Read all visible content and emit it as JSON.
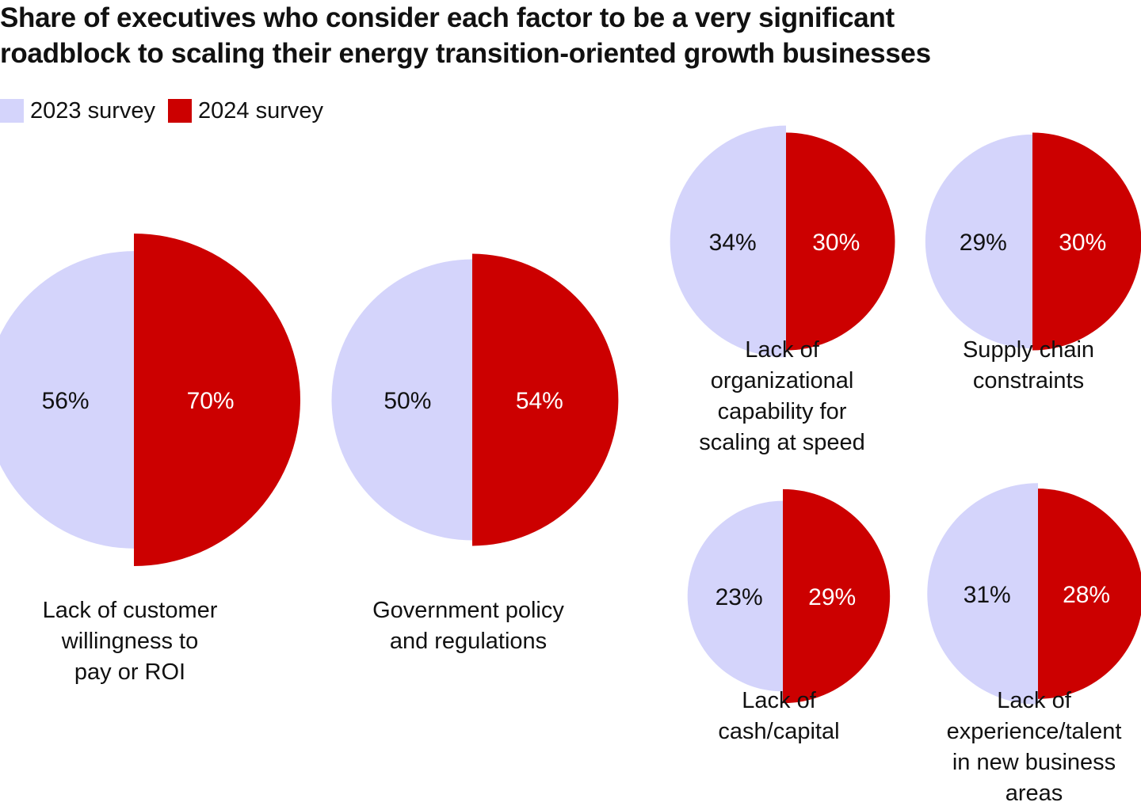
{
  "chart_data": {
    "type": "pie",
    "title_lines": [
      "Share of executives who consider each factor to be a very significant",
      "roadblock to scaling their energy transition-oriented growth businesses"
    ],
    "legend": [
      {
        "name": "2023 survey",
        "color": "#d4d4fb"
      },
      {
        "name": "2024 survey",
        "color": "#cc0000"
      }
    ],
    "series_names": [
      "2023 survey",
      "2024 survey"
    ],
    "categories": [
      {
        "label_lines": [
          "Lack of customer",
          "willingness to",
          "pay or ROI"
        ],
        "values": [
          56,
          70
        ],
        "labels": [
          "56%",
          "70%"
        ]
      },
      {
        "label_lines": [
          "Government policy",
          "and regulations"
        ],
        "values": [
          50,
          54
        ],
        "labels": [
          "50%",
          "54%"
        ]
      },
      {
        "label_lines": [
          "Lack of",
          "organizational",
          "capability for",
          "scaling at speed"
        ],
        "values": [
          34,
          30
        ],
        "labels": [
          "34%",
          "30%"
        ]
      },
      {
        "label_lines": [
          "Supply chain",
          "constraints"
        ],
        "values": [
          29,
          30
        ],
        "labels": [
          "29%",
          "30%"
        ]
      },
      {
        "label_lines": [
          "Lack of",
          "cash/capital"
        ],
        "values": [
          23,
          29
        ],
        "labels": [
          "23%",
          "29%"
        ]
      },
      {
        "label_lines": [
          "Lack of",
          "experience/talent",
          "in new business",
          "areas"
        ],
        "values": [
          31,
          28
        ],
        "labels": [
          "31%",
          "28%"
        ]
      }
    ]
  }
}
